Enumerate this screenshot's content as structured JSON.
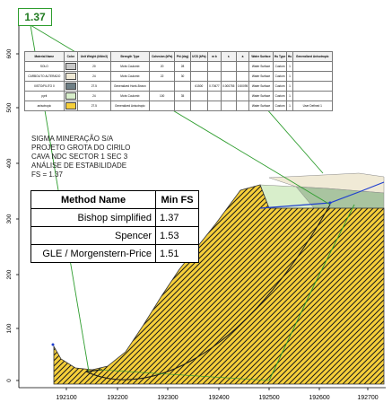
{
  "fs_box": {
    "value": "1.37"
  },
  "axes": {
    "y_ticks": [
      "0",
      "100",
      "200",
      "300",
      "400",
      "500",
      "600"
    ],
    "x_ticks": [
      "192100",
      "192200",
      "192300",
      "192400",
      "192500",
      "192600",
      "192700"
    ]
  },
  "material_table": {
    "headers": [
      "Material Name",
      "Color",
      "Unit Weight (kN/m3)",
      "Strength Type",
      "Cohesion (kPa)",
      "Phi (deg)",
      "UCS (kPa)",
      "m b",
      "s",
      "a",
      "Water Surface",
      "Hu Type",
      "Hu",
      "Generalized Anisotropic"
    ],
    "rows": [
      {
        "name": "SOLO",
        "color": "#c8c8c8",
        "cells": [
          "SOLO",
          "",
          "20",
          "Mohr-Coulomb",
          "20",
          "28",
          "",
          "",
          "",
          "",
          "Water Surface",
          "Custom",
          "1",
          ""
        ]
      },
      {
        "name": "CARBOLITO ALTERADO",
        "color": "#f0ead6",
        "cells": [
          "CARBOLITO ALTERADO",
          "",
          "24",
          "Mohr-Coulomb",
          "22",
          "30",
          "",
          "",
          "",
          "",
          "Water Surface",
          "Custom",
          "1",
          ""
        ]
      },
      {
        "name": "XISTO/FILITO",
        "color": "#6e7f86",
        "cells": [
          "XISTO/FILITO 0",
          "",
          "27.5",
          "Generalized Hoek-Brown",
          "",
          "",
          "61500",
          "0.70677",
          "0.000755",
          "0.50095",
          "Water Surface",
          "Custom",
          "1",
          ""
        ]
      },
      {
        "name": "pyrit",
        "color": "#d8eecb",
        "cells": [
          "pyrit",
          "",
          "24",
          "Mohr-Coulomb",
          "100",
          "35",
          "",
          "",
          "",
          "",
          "Water Surface",
          "Custom",
          "1",
          ""
        ]
      },
      {
        "name": "anisotropic",
        "color": "#f6cf3a",
        "cells": [
          "anisotropic",
          "",
          "27.5",
          "Generalized Anisotropic",
          "",
          "",
          "",
          "",
          "",
          "",
          "Water Surface",
          "Custom",
          "1",
          "User Defined 1"
        ]
      }
    ]
  },
  "info_lines": [
    "SIGMA MINERAÇÃO S/A",
    "PROJETO GROTA DO CIRILO",
    "CAVA NDC SECTOR 1 SEC 3",
    "ANÁLISE DE ESTABILIDADE",
    "FS = 1.37"
  ],
  "methods": {
    "header_method": "Method Name",
    "header_fs": "Min FS",
    "rows": [
      {
        "name": "Bishop simplified",
        "fs": "1.37"
      },
      {
        "name": "Spencer",
        "fs": "1.53"
      },
      {
        "name": "GLE / Morgenstern-Price",
        "fs": "1.51"
      }
    ]
  },
  "colors": {
    "hatch_fill": "#f6cf3a",
    "hatch_line": "#1a1a1a",
    "light_green": "#d8eecb",
    "gray_green": "#a9c4a0",
    "pale": "#f0ead6",
    "slip_green": "#2e9d2e",
    "water_blue": "#1f3fcf"
  }
}
